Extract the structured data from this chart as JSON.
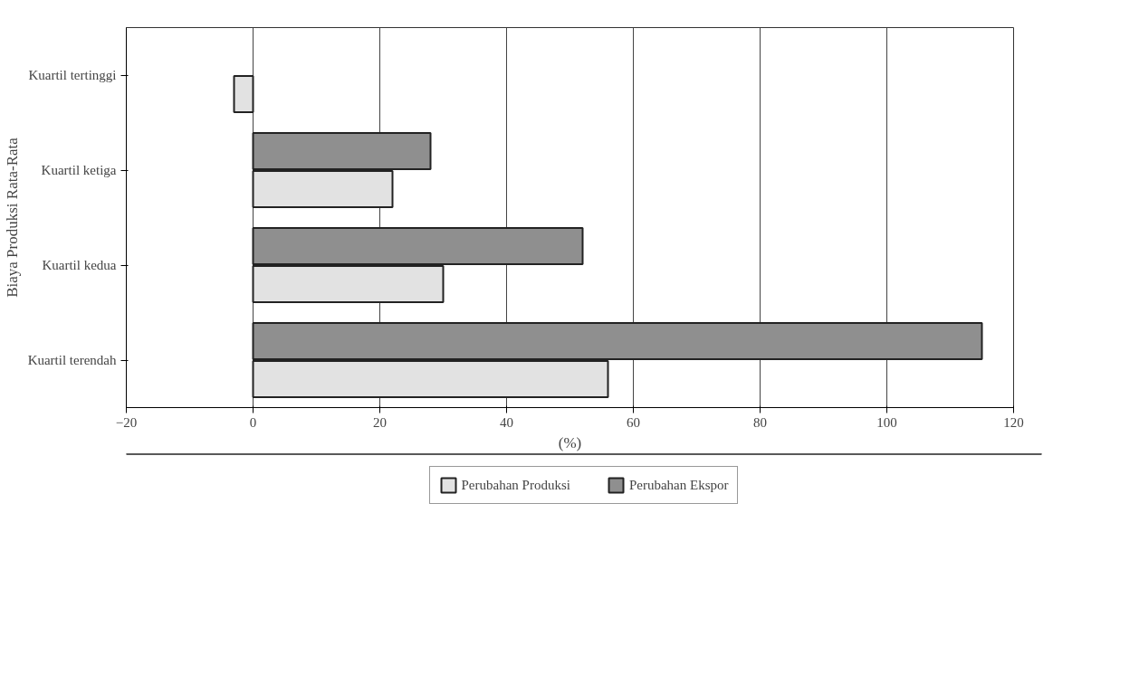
{
  "chart_data": {
    "type": "bar",
    "orientation": "horizontal",
    "xlabel": "(%)",
    "ylabel": "Biaya Produksi Rata-Rata",
    "categories": [
      "Kuartil tertinggi",
      "Kuartil ketiga",
      "Kuartil kedua",
      "Kuartil terendah"
    ],
    "series": [
      {
        "name": "Perubahan Produksi",
        "color": "#e2e2e2",
        "values": [
          -3,
          22,
          30,
          56
        ]
      },
      {
        "name": "Perubahan Ekspor",
        "color": "#8f8f8f",
        "values": [
          null,
          28,
          52,
          115
        ]
      }
    ],
    "xlim": [
      -20,
      120
    ],
    "xticks": [
      -20,
      0,
      20,
      40,
      60,
      80,
      100,
      120
    ],
    "grid": "x",
    "legend": "bottom"
  }
}
